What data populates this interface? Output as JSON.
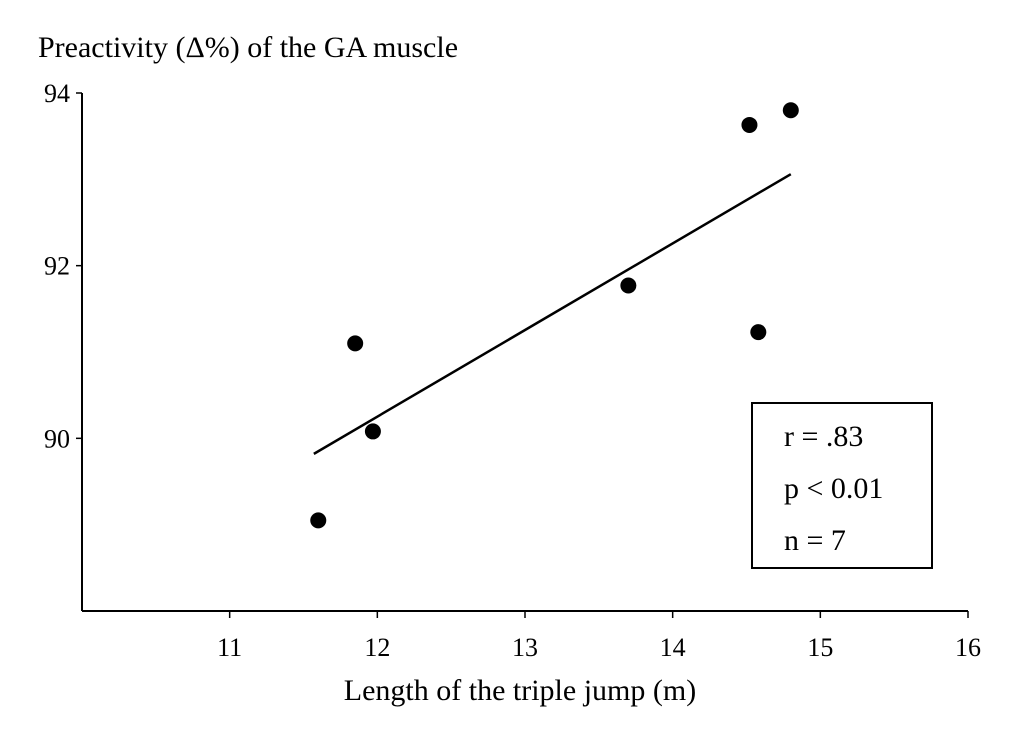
{
  "chart_data": {
    "type": "scatter",
    "title": "Preactivity (Δ%) of the GA muscle",
    "xlabel": "Length of the triple jump (m)",
    "ylabel": "Preactivity (Δ%) of the GA muscle",
    "xlim": [
      10,
      16
    ],
    "ylim": [
      88,
      94
    ],
    "x_ticks": [
      "11",
      "12",
      "13",
      "14",
      "15",
      "16"
    ],
    "y_ticks": [
      "90",
      "92",
      "94"
    ],
    "points": [
      {
        "x": 11.6,
        "y": 89.05
      },
      {
        "x": 11.85,
        "y": 91.1
      },
      {
        "x": 11.97,
        "y": 90.08
      },
      {
        "x": 13.7,
        "y": 91.77
      },
      {
        "x": 14.52,
        "y": 93.63
      },
      {
        "x": 14.58,
        "y": 91.23
      },
      {
        "x": 14.8,
        "y": 93.8
      }
    ],
    "regression_line": {
      "x_start": 11.57,
      "y_start": 89.82,
      "x_end": 14.8,
      "y_end": 93.06
    },
    "annotations": [
      "r = .83",
      "p < 0.01",
      "n = 7"
    ]
  },
  "colors": {
    "points": "#000000",
    "line": "#000000",
    "axis": "#000000"
  }
}
